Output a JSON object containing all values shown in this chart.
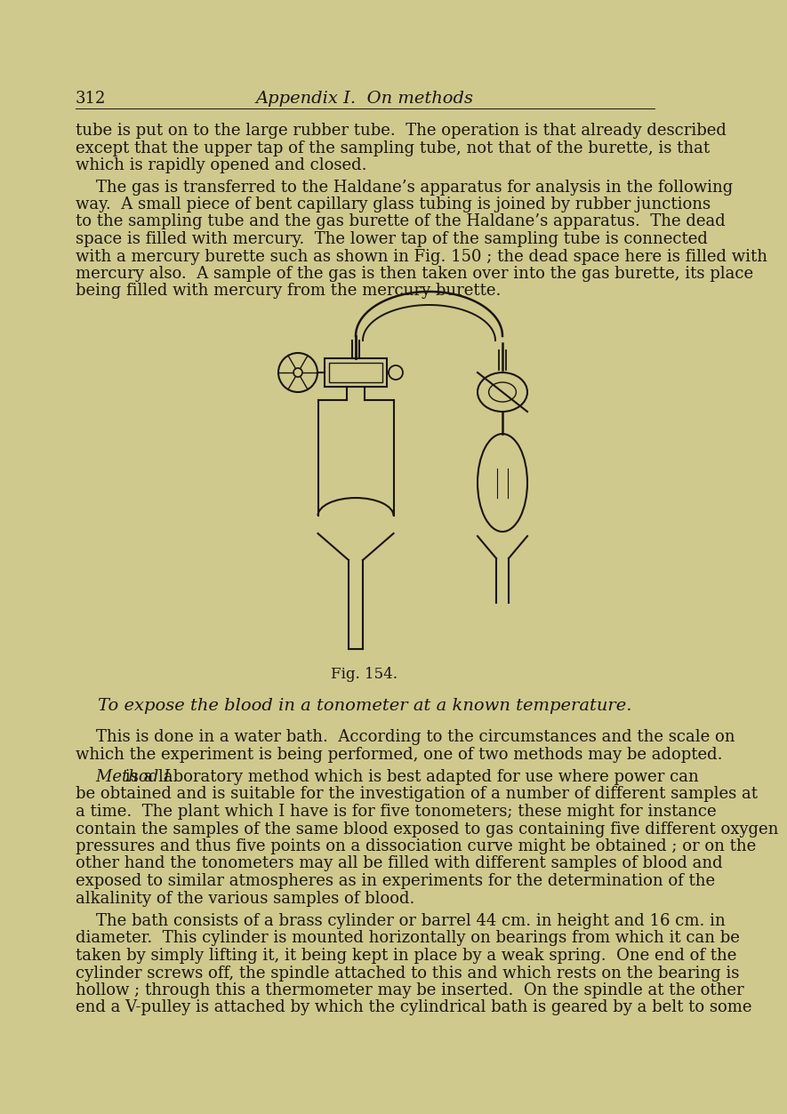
{
  "page_number": "312",
  "header_title": "Appendix I.  On methods",
  "background_color": "#d4c87a",
  "bg_page_color": "#ddd5a0",
  "text_color": "#1a1510",
  "paragraph1": "tube is put on to the large rubber tube.  The operation is that already described\nexcept that the upper tap of the sampling tube, not that of the burette, is that\nwhich is rapidly opened and closed.",
  "paragraph2_indent": "    The gas is transferred to the Haldane’s apparatus for analysis in the following\nway.  A small piece of bent capillary glass tubing is joined by rubber junctions\nto the sampling tube and the gas burette of the Haldane’s apparatus.  The dead\nspace is filled with mercury.  The lower tap of the sampling tube is connected\nwith a mercury burette such as shown in Fig. 150 ; the dead space here is filled with\nmercury also.  A sample of the gas is then taken over into the gas burette, its place\nbeing filled with mercury from the mercury burette.",
  "fig_caption": "Fig. 154.",
  "section_title": "To expose the blood in a tonometer at a known temperature.",
  "paragraph3_indent": "    This is done in a water bath.  According to the circumstances and the scale on\nwhich the experiment is being performed, one of two methods may be adopted.",
  "paragraph4_italic": "Method I",
  "paragraph4_first_rest": " is a laboratory method which is best adapted for use where power can",
  "paragraph4_rest": "be obtained and is suitable for the investigation of a number of different samples at\na time.  The plant which I have is for five tonometers; these might for instance\ncontain the samples of the same blood exposed to gas containing five different oxygen\npressures and thus five points on a dissociation curve might be obtained ; or on the\nother hand the tonometers may all be filled with different samples of blood and\nexposed to similar atmospheres as in experiments for the determination of the\nalkalinity of the various samples of blood.",
  "paragraph5_indent": "    The bath consists of a brass cylinder or barrel 44 cm. in height and 16 cm. in\ndiameter.  This cylinder is mounted horizontally on bearings from which it can be\ntaken by simply lifting it, it being kept in place by a weak spring.  One end of the\ncylinder screws off, the spindle attached to this and which rests on the bearing is\nhollow ; through this a thermometer may be inserted.  On the spindle at the other\nend a V-pulley is attached by which the cylindrical bath is geared by a belt to some"
}
